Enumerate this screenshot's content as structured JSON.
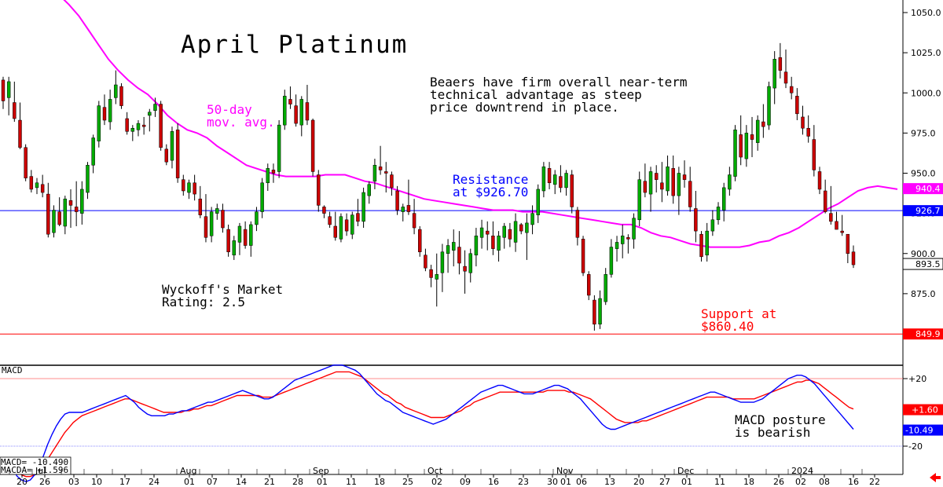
{
  "chart_data": {
    "type": "candlestick",
    "title": "April Platinum",
    "y_axis": {
      "ticks": [
        "1050.0",
        "1025.0",
        "1000.0",
        "975.0",
        "950.0",
        "925.0",
        "900.0",
        "875.0",
        "850.0"
      ],
      "ylim": [
        840,
        1057
      ],
      "position": "right"
    },
    "x_axis": {
      "day_labels": [
        "20",
        "26",
        "03",
        "10",
        "17",
        "24",
        "01",
        "07",
        "14",
        "21",
        "28",
        "01",
        "11",
        "18",
        "25",
        "02",
        "09",
        "16",
        "23",
        "30",
        "01",
        "06",
        "13",
        "20",
        "27",
        "01",
        "11",
        "18",
        "26",
        "02",
        "08",
        "16",
        "22"
      ],
      "month_labels": [
        {
          "label": "Jul",
          "after_day": 1
        },
        {
          "label": "Aug",
          "after_day": 6
        },
        {
          "label": "Sep",
          "after_day": 11
        },
        {
          "label": "Oct",
          "after_day": 15
        },
        {
          "label": "Nov",
          "after_day": 20
        },
        {
          "label": "Dec",
          "after_day": 25
        },
        {
          "label": "2024",
          "after_day": 29
        }
      ]
    },
    "price_candles": [
      [
        1008,
        1010,
        990,
        995
      ],
      [
        997,
        1010,
        986,
        1007
      ],
      [
        994,
        1007,
        982,
        984
      ],
      [
        983,
        994,
        965,
        966
      ],
      [
        966,
        968,
        945,
        947
      ],
      [
        948,
        952,
        938,
        940
      ],
      [
        941,
        947,
        937,
        944
      ],
      [
        943,
        949,
        935,
        938
      ],
      [
        937,
        944,
        910,
        912
      ],
      [
        913,
        930,
        910,
        927
      ],
      [
        926,
        935,
        917,
        918
      ],
      [
        917,
        936,
        912,
        934
      ],
      [
        933,
        940,
        916,
        930
      ],
      [
        929,
        945,
        917,
        926
      ],
      [
        925,
        945,
        918,
        940
      ],
      [
        938,
        957,
        934,
        955
      ],
      [
        955,
        974,
        950,
        972
      ],
      [
        970,
        995,
        966,
        992
      ],
      [
        991,
        999,
        980,
        983
      ],
      [
        982,
        1002,
        977,
        996
      ],
      [
        997,
        1014,
        993,
        1005
      ],
      [
        1004,
        1006,
        990,
        992
      ],
      [
        984,
        988,
        974,
        976
      ],
      [
        976,
        980,
        970,
        978
      ],
      [
        977,
        983,
        973,
        981
      ],
      [
        980,
        985,
        974,
        979
      ],
      [
        986,
        990,
        976,
        988
      ],
      [
        989,
        997,
        985,
        993
      ],
      [
        993,
        995,
        964,
        966
      ],
      [
        965,
        968,
        955,
        957
      ],
      [
        958,
        979,
        953,
        976
      ],
      [
        977,
        981,
        944,
        947
      ],
      [
        946,
        949,
        936,
        939
      ],
      [
        938,
        946,
        934,
        944
      ],
      [
        944,
        949,
        933,
        937
      ],
      [
        934,
        942,
        922,
        924
      ],
      [
        923,
        937,
        907,
        910
      ],
      [
        911,
        929,
        907,
        926
      ],
      [
        925,
        931,
        921,
        928
      ],
      [
        927,
        931,
        913,
        916
      ],
      [
        915,
        918,
        898,
        901
      ],
      [
        899,
        911,
        896,
        908
      ],
      [
        907,
        919,
        899,
        917
      ],
      [
        915,
        920,
        903,
        905
      ],
      [
        905,
        920,
        898,
        918
      ],
      [
        918,
        929,
        914,
        926
      ],
      [
        926,
        947,
        922,
        944
      ],
      [
        944,
        956,
        939,
        953
      ],
      [
        952,
        956,
        944,
        950
      ],
      [
        951,
        983,
        947,
        980
      ],
      [
        980,
        1002,
        977,
        998
      ],
      [
        996,
        1004,
        990,
        993
      ],
      [
        992,
        999,
        979,
        981
      ],
      [
        980,
        998,
        973,
        996
      ],
      [
        994,
        1005,
        980,
        983
      ],
      [
        983,
        984,
        948,
        951
      ],
      [
        949,
        952,
        926,
        930
      ],
      [
        929,
        930,
        922,
        925
      ],
      [
        923,
        926,
        916,
        918
      ],
      [
        917,
        926,
        908,
        910
      ],
      [
        909,
        925,
        907,
        923
      ],
      [
        921,
        925,
        911,
        914
      ],
      [
        912,
        926,
        909,
        924
      ],
      [
        925,
        934,
        917,
        920
      ],
      [
        920,
        941,
        916,
        938
      ],
      [
        936,
        945,
        931,
        943
      ],
      [
        945,
        959,
        940,
        955
      ],
      [
        954,
        967,
        949,
        952
      ],
      [
        951,
        957,
        938,
        950
      ],
      [
        949,
        951,
        936,
        941
      ],
      [
        939,
        942,
        924,
        927
      ],
      [
        926,
        931,
        920,
        929
      ],
      [
        930,
        946,
        924,
        926
      ],
      [
        925,
        934,
        912,
        916
      ],
      [
        915,
        917,
        898,
        901
      ],
      [
        899,
        903,
        889,
        891
      ],
      [
        890,
        893,
        879,
        885
      ],
      [
        884,
        900,
        867,
        887
      ],
      [
        888,
        906,
        876,
        901
      ],
      [
        900,
        909,
        888,
        905
      ],
      [
        902,
        915,
        892,
        907
      ],
      [
        904,
        914,
        887,
        894
      ],
      [
        892,
        902,
        875,
        889
      ],
      [
        888,
        903,
        882,
        900
      ],
      [
        899,
        916,
        892,
        911
      ],
      [
        910,
        921,
        903,
        916
      ],
      [
        914,
        920,
        902,
        912
      ],
      [
        911,
        920,
        899,
        903
      ],
      [
        902,
        914,
        895,
        911
      ],
      [
        910,
        919,
        903,
        917
      ],
      [
        915,
        919,
        904,
        909
      ],
      [
        907,
        925,
        901,
        920
      ],
      [
        918,
        919,
        912,
        914
      ],
      [
        913,
        925,
        896,
        919
      ],
      [
        918,
        930,
        912,
        925
      ],
      [
        924,
        943,
        919,
        940
      ],
      [
        939,
        957,
        935,
        954
      ],
      [
        953,
        957,
        940,
        944
      ],
      [
        943,
        952,
        937,
        949
      ],
      [
        948,
        955,
        938,
        941
      ],
      [
        941,
        952,
        936,
        950
      ],
      [
        949,
        952,
        925,
        929
      ],
      [
        927,
        929,
        905,
        910
      ],
      [
        909,
        911,
        886,
        888
      ],
      [
        887,
        889,
        871,
        874
      ],
      [
        871,
        874,
        852,
        856
      ],
      [
        856,
        877,
        853,
        872
      ],
      [
        870,
        891,
        868,
        887
      ],
      [
        887,
        909,
        885,
        904
      ],
      [
        903,
        911,
        895,
        907
      ],
      [
        906,
        918,
        897,
        911
      ],
      [
        910,
        912,
        900,
        909
      ],
      [
        909,
        925,
        903,
        922
      ],
      [
        921,
        951,
        917,
        946
      ],
      [
        945,
        956,
        935,
        938
      ],
      [
        937,
        954,
        926,
        951
      ],
      [
        950,
        955,
        938,
        946
      ],
      [
        944,
        957,
        932,
        940
      ],
      [
        939,
        961,
        936,
        954
      ],
      [
        953,
        961,
        931,
        936
      ],
      [
        936,
        954,
        924,
        950
      ],
      [
        949,
        958,
        941,
        946
      ],
      [
        945,
        954,
        926,
        929
      ],
      [
        928,
        939,
        907,
        914
      ],
      [
        912,
        914,
        895,
        898
      ],
      [
        899,
        919,
        895,
        914
      ],
      [
        914,
        927,
        911,
        921
      ],
      [
        921,
        932,
        918,
        929
      ],
      [
        927,
        944,
        920,
        941
      ],
      [
        940,
        954,
        936,
        949
      ],
      [
        948,
        980,
        945,
        977
      ],
      [
        974,
        986,
        955,
        960
      ],
      [
        959,
        980,
        954,
        975
      ],
      [
        974,
        985,
        960,
        971
      ],
      [
        969,
        986,
        964,
        983
      ],
      [
        982,
        993,
        972,
        979
      ],
      [
        980,
        1007,
        977,
        1004
      ],
      [
        1003,
        1026,
        993,
        1021
      ],
      [
        1022,
        1031,
        1009,
        1014
      ],
      [
        1013,
        1027,
        1003,
        1006
      ],
      [
        1004,
        1010,
        996,
        1000
      ],
      [
        998,
        1003,
        983,
        987
      ],
      [
        985,
        992,
        974,
        978
      ],
      [
        978,
        986,
        969,
        973
      ],
      [
        971,
        980,
        948,
        952
      ],
      [
        951,
        954,
        937,
        940
      ],
      [
        939,
        946,
        925,
        926
      ],
      [
        925,
        942,
        918,
        920
      ],
      [
        920,
        926,
        915,
        915
      ],
      [
        914,
        924,
        911,
        913
      ],
      [
        912,
        912,
        894,
        900
      ],
      [
        901,
        905,
        891,
        893
      ]
    ],
    "moving_average_50day": [
      1078,
      1067,
      1061,
      1055,
      1048,
      1039,
      1030,
      1021,
      1014,
      1008,
      1003,
      999,
      993,
      986,
      981,
      977,
      975,
      972,
      967,
      963,
      959,
      955,
      953,
      951,
      949,
      948,
      948,
      948,
      948,
      949,
      949,
      949,
      947,
      945,
      944,
      942,
      940,
      938,
      936,
      934,
      933,
      932,
      931,
      930,
      929,
      928,
      927,
      927,
      927,
      926,
      926,
      926,
      925,
      924,
      923,
      922,
      921,
      920,
      919,
      918,
      918,
      916,
      913,
      911,
      910,
      908,
      906,
      905,
      904,
      904,
      904,
      904,
      905,
      907,
      908,
      911,
      913,
      916,
      920,
      924,
      928,
      931,
      935,
      939,
      941,
      942,
      941,
      940
    ],
    "support": 860.4,
    "resistance": 926.7,
    "price_tags": [
      {
        "text": "940.4",
        "value": 940.4,
        "color": "#ff00ff"
      },
      {
        "text": "926.7",
        "value": 926.7,
        "color": "#0000ff"
      },
      {
        "text": "893.5",
        "value": 893.5,
        "color": "#000000"
      },
      {
        "text": "849.9",
        "value": 849.9,
        "color": "#ff0000"
      }
    ],
    "macd_panel": {
      "label": "MACD",
      "ticks": [
        "+20",
        "-20"
      ],
      "tag_macd": "-10.49",
      "tag_macda": "+1.60",
      "macd_text": "MACD= -10.490",
      "macda_text": "MACDA= +1.596",
      "macd": [
        -28,
        -29,
        -31,
        -34,
        -38,
        -40,
        -41,
        -40,
        -37,
        -32,
        -26,
        -19,
        -13,
        -8,
        -4,
        -1,
        0,
        0,
        0,
        0,
        1,
        2,
        3,
        4,
        5,
        6,
        7,
        8,
        9,
        10,
        8,
        6,
        3,
        1,
        -1,
        -2,
        -2,
        -2,
        -2,
        -1,
        -1,
        0,
        1,
        1,
        2,
        3,
        4,
        5,
        6,
        6,
        7,
        8,
        9,
        10,
        11,
        12,
        13,
        12,
        11,
        10,
        9,
        8,
        8,
        9,
        11,
        13,
        15,
        17,
        19,
        20,
        21,
        22,
        23,
        24,
        25,
        26,
        27,
        28,
        28,
        28,
        27,
        26,
        25,
        23,
        20,
        17,
        14,
        11,
        9,
        7,
        6,
        4,
        2,
        0,
        -1,
        -2,
        -3,
        -4,
        -5,
        -6,
        -7,
        -6,
        -5,
        -4,
        -2,
        0,
        2,
        4,
        6,
        8,
        10,
        12,
        13,
        14,
        15,
        16,
        16,
        15,
        14,
        13,
        12,
        11,
        11,
        11,
        12,
        13,
        14,
        15,
        16,
        16,
        15,
        14,
        12,
        10,
        8,
        5,
        2,
        -1,
        -4,
        -7,
        -9,
        -10,
        -10,
        -9,
        -8,
        -7,
        -6,
        -5,
        -4,
        -3,
        -2,
        -1,
        0,
        1,
        2,
        3,
        4,
        5,
        6,
        7,
        8,
        9,
        10,
        11,
        12,
        12,
        11,
        10,
        9,
        8,
        7,
        6,
        6,
        6,
        6,
        7,
        8,
        10,
        12,
        14,
        16,
        18,
        20,
        21,
        22,
        22,
        21,
        19,
        17,
        14,
        11,
        8,
        5,
        2,
        -1,
        -4,
        -7,
        -10
      ],
      "macda": [
        -30,
        -30,
        -31,
        -33,
        -35,
        -37,
        -38,
        -38,
        -37,
        -35,
        -32,
        -28,
        -24,
        -20,
        -16,
        -12,
        -9,
        -6,
        -4,
        -2,
        -1,
        0,
        1,
        2,
        3,
        4,
        5,
        6,
        7,
        8,
        8,
        7,
        6,
        5,
        4,
        3,
        2,
        1,
        0,
        0,
        0,
        0,
        0,
        1,
        1,
        2,
        2,
        3,
        4,
        4,
        5,
        6,
        7,
        8,
        9,
        10,
        10,
        10,
        10,
        10,
        10,
        9,
        9,
        9,
        10,
        11,
        12,
        13,
        14,
        15,
        16,
        17,
        18,
        19,
        20,
        21,
        22,
        23,
        24,
        24,
        24,
        24,
        23,
        22,
        21,
        19,
        17,
        15,
        13,
        11,
        10,
        8,
        6,
        5,
        3,
        2,
        1,
        0,
        -1,
        -2,
        -3,
        -3,
        -3,
        -3,
        -2,
        -1,
        0,
        1,
        3,
        4,
        6,
        7,
        8,
        9,
        10,
        11,
        12,
        12,
        12,
        12,
        12,
        12,
        12,
        12,
        12,
        12,
        12,
        13,
        13,
        13,
        13,
        13,
        12,
        12,
        11,
        10,
        9,
        8,
        6,
        4,
        2,
        0,
        -2,
        -4,
        -5,
        -6,
        -6,
        -6,
        -6,
        -5,
        -5,
        -4,
        -3,
        -2,
        -1,
        0,
        1,
        2,
        3,
        4,
        5,
        6,
        7,
        8,
        9,
        9,
        9,
        9,
        9,
        9,
        8,
        8,
        8,
        8,
        8,
        8,
        9,
        10,
        11,
        12,
        13,
        14,
        15,
        16,
        17,
        18,
        18,
        19,
        19,
        18,
        17,
        15,
        13,
        11,
        9,
        7,
        5,
        3,
        2
      ]
    },
    "colors": {
      "up": "#00aa00",
      "down": "#cc0000",
      "ma": "#ff00ff",
      "resistance": "#0000ff",
      "support": "#ff0000",
      "macd": "#0000ff",
      "macda": "#ff0000",
      "exit_arrow": "#ff0000"
    }
  },
  "annotations": {
    "title": "April Platinum",
    "commentary": [
      "Beaers have firm overall near-term",
      "technical advantage as steep",
      "price downtrend in place."
    ],
    "ma_label": [
      "50-day",
      "mov. avg."
    ],
    "resistance_label": [
      "Resistance",
      "at $926.70"
    ],
    "support_label": [
      "Support at",
      "$860.40"
    ],
    "rating": [
      "Wyckoff's Market",
      "Rating: 2.5"
    ],
    "macd_note": [
      "MACD posture",
      "is bearish"
    ]
  }
}
